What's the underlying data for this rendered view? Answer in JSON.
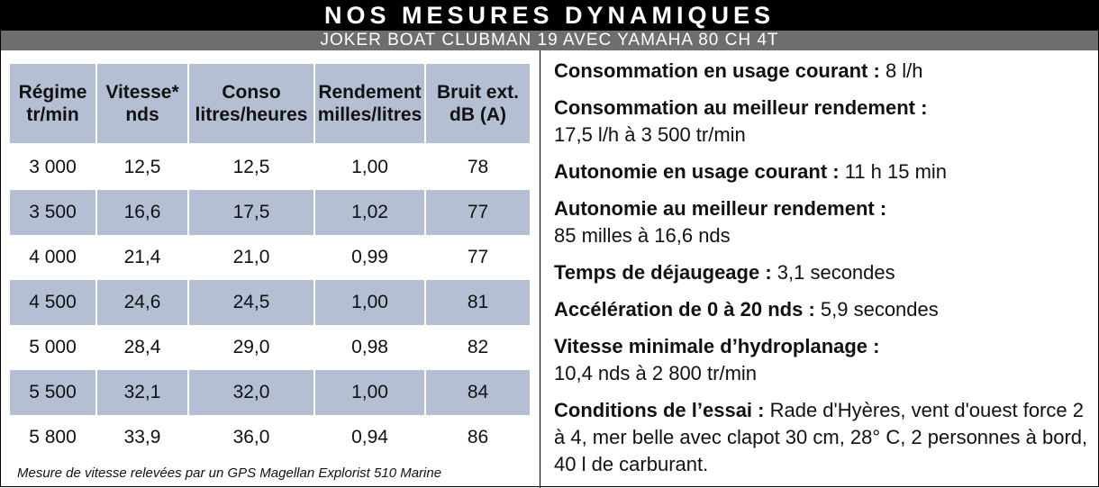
{
  "header": {
    "title": "NOS MESURES DYNAMIQUES",
    "subtitle": "JOKER BOAT CLUBMAN 19 AVEC YAMAHA 80 CH 4T"
  },
  "table": {
    "columns": [
      {
        "line1": "Régime",
        "line2": "tr/min"
      },
      {
        "line1": "Vitesse*",
        "line2": "nds"
      },
      {
        "line1": "Conso",
        "line2": "litres/heures"
      },
      {
        "line1": "Rendement",
        "line2": "milles/litres"
      },
      {
        "line1": "Bruit ext.",
        "line2": "dB (A)"
      }
    ],
    "rows": [
      [
        "3 000",
        "12,5",
        "12,5",
        "1,00",
        "78"
      ],
      [
        "3 500",
        "16,6",
        "17,5",
        "1,02",
        "77"
      ],
      [
        "4 000",
        "21,4",
        "21,0",
        "0,99",
        "77"
      ],
      [
        "4 500",
        "24,6",
        "24,5",
        "1,00",
        "81"
      ],
      [
        "5 000",
        "28,4",
        "29,0",
        "0,98",
        "82"
      ],
      [
        "5 500",
        "32,1",
        "32,0",
        "1,00",
        "84"
      ],
      [
        "5 800",
        "33,9",
        "36,0",
        "0,94",
        "86"
      ]
    ],
    "footnote": "Mesure de vitesse relevées par un GPS Magellan Explorist 510 Marine"
  },
  "specs": [
    {
      "label": "Consommation en usage courant :",
      "value": " 8 l/h"
    },
    {
      "label": "Consommation au meilleur rendement :",
      "value": "17,5 l/h à 3 500 tr/min",
      "newline": true
    },
    {
      "label": "Autonomie en usage courant :",
      "value": " 11 h 15 min"
    },
    {
      "label": "Autonomie au meilleur rendement :",
      "value": "85 milles à 16,6 nds",
      "newline": true
    },
    {
      "label": "Temps de déjaugeage :",
      "value": " 3,1 secondes"
    },
    {
      "label": "Accélération de 0 à 20 nds :",
      "value": " 5,9 secondes"
    },
    {
      "label": "Vitesse minimale d’hydroplanage :",
      "value": "10,4 nds à 2 800 tr/min",
      "newline": true
    },
    {
      "label": "Conditions de l’essai :",
      "value": " Rade d'Hyères, vent d'ouest force 2 à 4, mer belle avec clapot 30 cm, 28° C, 2 personnes à bord, 40 l de carburant."
    }
  ],
  "colors": {
    "title_bg": "#000000",
    "subtitle_bg": "#6e6e6e",
    "row_shade": "#b4bfd4"
  }
}
